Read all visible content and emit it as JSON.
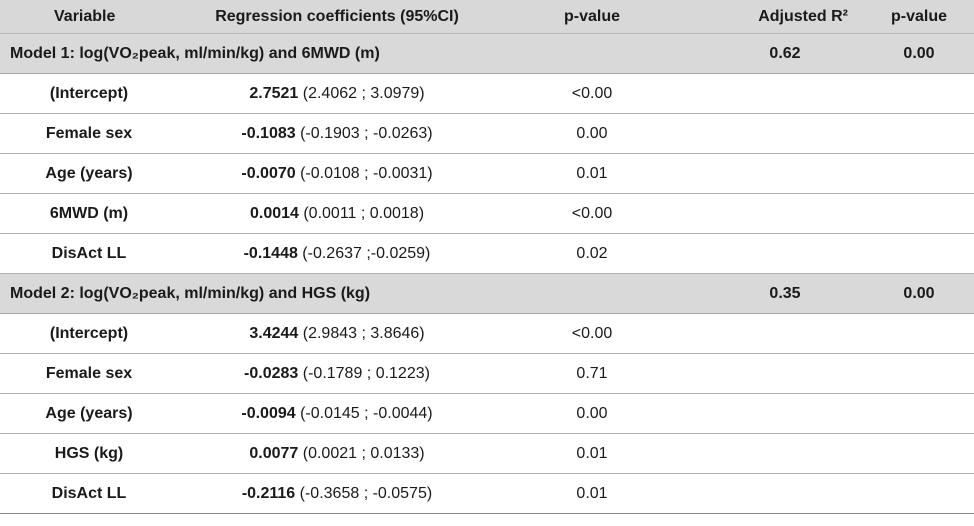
{
  "header": {
    "variable": "Variable",
    "coefficients": "Regression coefficients (95%CI)",
    "pvalue": "p-value",
    "adjusted_r2": "Adjusted R²",
    "pvalue2": "p-value"
  },
  "models": [
    {
      "title": "Model 1: log(VO₂peak, ml/min/kg) and 6MWD (m)",
      "adjusted_r2": "0.62",
      "pvalue": "0.00",
      "rows": [
        {
          "variable": "(Intercept)",
          "coef": "2.7521",
          "ci": " (2.4062 ; 3.0979)",
          "p": "<0.00"
        },
        {
          "variable": "Female sex",
          "coef": "-0.1083",
          "ci": " (-0.1903 ; -0.0263)",
          "p": "0.00"
        },
        {
          "variable": "Age (years)",
          "coef": "-0.0070",
          "ci": " (-0.0108 ; -0.0031)",
          "p": "0.01"
        },
        {
          "variable": "6MWD (m)",
          "coef": "0.0014",
          "ci": " (0.0011 ; 0.0018)",
          "p": "<0.00"
        },
        {
          "variable": "DisAct LL",
          "coef": "-0.1448",
          "ci": " (-0.2637 ;-0.0259)",
          "p": "0.02"
        }
      ]
    },
    {
      "title": "Model 2: log(VO₂peak, ml/min/kg) and HGS (kg)",
      "adjusted_r2": "0.35",
      "pvalue": "0.00",
      "rows": [
        {
          "variable": "(Intercept)",
          "coef": "3.4244",
          "ci": " (2.9843 ; 3.8646)",
          "p": "<0.00"
        },
        {
          "variable": "Female sex",
          "coef": "-0.0283",
          "ci": " (-0.1789 ; 0.1223)",
          "p": "0.71"
        },
        {
          "variable": "Age (years)",
          "coef": "-0.0094",
          "ci": " (-0.0145 ; -0.0044)",
          "p": "0.00"
        },
        {
          "variable": "HGS (kg)",
          "coef": "0.0077",
          "ci": " (0.0021 ; 0.0133)",
          "p": "0.01"
        },
        {
          "variable": "DisAct LL",
          "coef": "-0.2116",
          "ci": " (-0.3658 ; -0.0575)",
          "p": "0.01"
        }
      ]
    }
  ]
}
